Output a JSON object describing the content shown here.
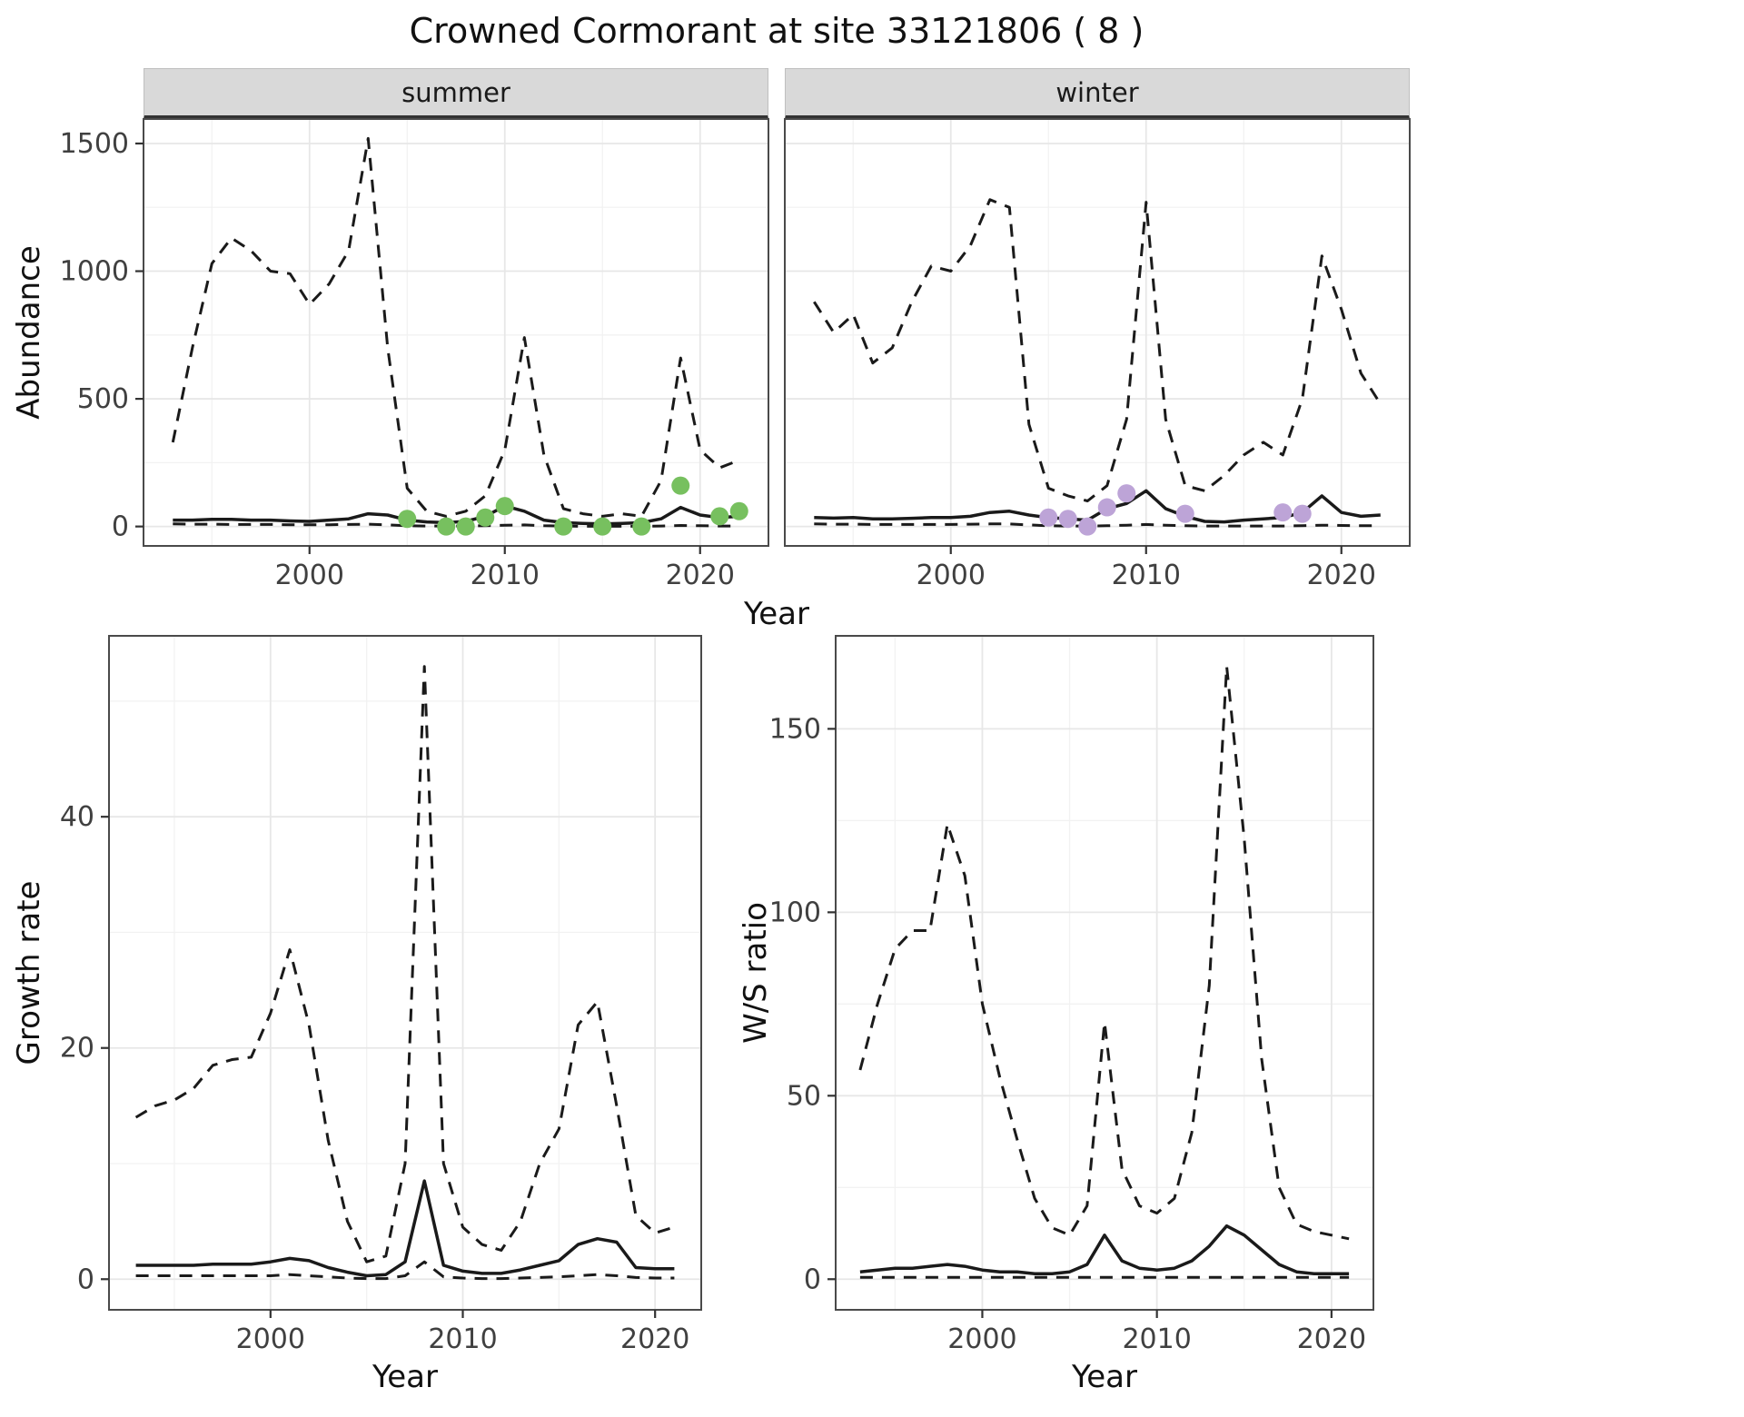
{
  "title": "Crowned Cormorant at site 33121806 ( 8 )",
  "colors": {
    "line": "#1a1a1a",
    "panel_bg": "#ffffff",
    "grid_major": "#e7e7e7",
    "grid_minor": "#f2f2f2",
    "panel_border": "#4a4a4a",
    "tick_mark": "#333333",
    "tick_text": "#404040",
    "strip_bg": "#d9d9d9",
    "summer_points": "#77c05f",
    "winter_points": "#bda4d7"
  },
  "chart_data": [
    {
      "id": "abundance_summer",
      "type": "line",
      "facet": "summer",
      "title": "",
      "xlabel": "Year",
      "ylabel": "Abundance",
      "xlim": [
        1991.5,
        2023.5
      ],
      "ylim": [
        -76,
        1596
      ],
      "xticks": [
        2000,
        2010,
        2020
      ],
      "yticks": [
        0,
        500,
        1000,
        1500
      ],
      "grid": true,
      "legend": "none",
      "x": [
        1993,
        1994,
        1995,
        1996,
        1997,
        1998,
        1999,
        2000,
        2001,
        2002,
        2003,
        2004,
        2005,
        2006,
        2007,
        2008,
        2009,
        2010,
        2011,
        2012,
        2013,
        2014,
        2015,
        2016,
        2017,
        2018,
        2019,
        2020,
        2021,
        2022
      ],
      "series": [
        {
          "name": "upper_95ci",
          "style": "dashed",
          "y": [
            330,
            700,
            1030,
            1130,
            1080,
            1000,
            990,
            870,
            950,
            1080,
            1520,
            700,
            150,
            60,
            40,
            60,
            120,
            300,
            740,
            280,
            70,
            50,
            40,
            50,
            40,
            180,
            660,
            300,
            230,
            260
          ]
        },
        {
          "name": "median",
          "style": "solid",
          "y": [
            25,
            25,
            28,
            28,
            25,
            25,
            22,
            20,
            25,
            30,
            50,
            45,
            25,
            18,
            15,
            20,
            40,
            80,
            60,
            25,
            15,
            12,
            10,
            12,
            15,
            30,
            75,
            45,
            35,
            40
          ]
        },
        {
          "name": "lower_95ci",
          "style": "dashed",
          "y": [
            10,
            9,
            9,
            8,
            8,
            8,
            7,
            7,
            7,
            8,
            9,
            6,
            3,
            2,
            2,
            2,
            3,
            5,
            6,
            3,
            2,
            1,
            1,
            1,
            1,
            2,
            4,
            3,
            2,
            2
          ]
        },
        {
          "name": "observed_counts",
          "style": "points",
          "color": "#77c05f",
          "x": [
            2005,
            2007,
            2008,
            2009,
            2010,
            2013,
            2015,
            2017,
            2019,
            2021,
            2022
          ],
          "y": [
            30,
            0,
            0,
            35,
            80,
            0,
            0,
            0,
            160,
            40,
            60
          ]
        }
      ]
    },
    {
      "id": "abundance_winter",
      "type": "line",
      "facet": "winter",
      "title": "",
      "xlabel": "Year",
      "ylabel": "Abundance",
      "xlim": [
        1991.5,
        2023.5
      ],
      "ylim": [
        -76,
        1596
      ],
      "xticks": [
        2000,
        2010,
        2020
      ],
      "yticks": [
        0,
        500,
        1000,
        1500
      ],
      "grid": true,
      "legend": "none",
      "x": [
        1993,
        1994,
        1995,
        1996,
        1997,
        1998,
        1999,
        2000,
        2001,
        2002,
        2003,
        2004,
        2005,
        2006,
        2007,
        2008,
        2009,
        2010,
        2011,
        2012,
        2013,
        2014,
        2015,
        2016,
        2017,
        2018,
        2019,
        2020,
        2021,
        2022
      ],
      "series": [
        {
          "name": "upper_95ci",
          "style": "dashed",
          "y": [
            880,
            760,
            830,
            640,
            700,
            880,
            1020,
            1000,
            1100,
            1280,
            1250,
            400,
            150,
            120,
            100,
            160,
            420,
            1270,
            420,
            160,
            140,
            200,
            280,
            330,
            280,
            500,
            1060,
            850,
            600,
            480
          ]
        },
        {
          "name": "median",
          "style": "solid",
          "y": [
            35,
            33,
            35,
            30,
            30,
            32,
            35,
            35,
            40,
            55,
            60,
            45,
            35,
            30,
            25,
            70,
            90,
            140,
            70,
            40,
            20,
            18,
            25,
            30,
            35,
            55,
            120,
            55,
            40,
            45
          ]
        },
        {
          "name": "lower_95ci",
          "style": "dashed",
          "y": [
            10,
            9,
            9,
            8,
            8,
            8,
            8,
            8,
            9,
            10,
            10,
            6,
            3,
            2,
            2,
            3,
            5,
            8,
            5,
            3,
            2,
            2,
            2,
            2,
            2,
            3,
            5,
            4,
            3,
            3
          ]
        },
        {
          "name": "observed_counts",
          "style": "points",
          "color": "#bda4d7",
          "x": [
            2005,
            2006,
            2007,
            2008,
            2009,
            2012,
            2017,
            2018
          ],
          "y": [
            35,
            30,
            0,
            75,
            130,
            50,
            55,
            50
          ]
        }
      ]
    },
    {
      "id": "growth_rate",
      "type": "line",
      "facet": "",
      "title": "",
      "xlabel": "Year",
      "ylabel": "Growth rate",
      "xlim": [
        1991.6,
        2022.4
      ],
      "ylim": [
        -2.65,
        55.65
      ],
      "xticks": [
        2000,
        2010,
        2020
      ],
      "yticks": [
        0,
        20,
        40
      ],
      "grid": true,
      "legend": "none",
      "x": [
        1993,
        1994,
        1995,
        1996,
        1997,
        1998,
        1999,
        2000,
        2001,
        2002,
        2003,
        2004,
        2005,
        2006,
        2007,
        2008,
        2009,
        2010,
        2011,
        2012,
        2013,
        2014,
        2015,
        2016,
        2017,
        2018,
        2019,
        2020,
        2021
      ],
      "series": [
        {
          "name": "upper_95ci",
          "style": "dashed",
          "y": [
            14,
            15,
            15.5,
            16.5,
            18.5,
            19,
            19.2,
            23,
            28.5,
            22,
            12,
            5,
            1.5,
            2,
            10,
            53,
            10,
            4.5,
            3,
            2.5,
            5,
            10,
            13,
            22,
            24,
            15,
            5.5,
            4,
            4.5
          ]
        },
        {
          "name": "median",
          "style": "solid",
          "y": [
            1.2,
            1.2,
            1.2,
            1.2,
            1.3,
            1.3,
            1.3,
            1.5,
            1.8,
            1.6,
            1.0,
            0.6,
            0.3,
            0.4,
            1.5,
            8.5,
            1.2,
            0.7,
            0.5,
            0.5,
            0.8,
            1.2,
            1.6,
            3.0,
            3.5,
            3.2,
            1.0,
            0.9,
            0.9
          ]
        },
        {
          "name": "lower_95ci",
          "style": "dashed",
          "y": [
            0.3,
            0.3,
            0.3,
            0.3,
            0.3,
            0.3,
            0.3,
            0.3,
            0.4,
            0.3,
            0.2,
            0.1,
            0.05,
            0.05,
            0.3,
            1.5,
            0.2,
            0.1,
            0.05,
            0.05,
            0.1,
            0.15,
            0.2,
            0.3,
            0.4,
            0.3,
            0.15,
            0.1,
            0.1
          ]
        }
      ]
    },
    {
      "id": "ws_ratio",
      "type": "line",
      "facet": "",
      "title": "",
      "xlabel": "Year",
      "ylabel": "W/S ratio",
      "xlim": [
        1991.6,
        2022.4
      ],
      "ylim": [
        -8.35,
        175.35
      ],
      "xticks": [
        2000,
        2010,
        2020
      ],
      "yticks": [
        0,
        50,
        100,
        150
      ],
      "grid": true,
      "legend": "none",
      "x": [
        1993,
        1994,
        1995,
        1996,
        1997,
        1998,
        1999,
        2000,
        2001,
        2002,
        2003,
        2004,
        2005,
        2006,
        2007,
        2008,
        2009,
        2010,
        2011,
        2012,
        2013,
        2014,
        2015,
        2016,
        2017,
        2018,
        2019,
        2020,
        2021
      ],
      "series": [
        {
          "name": "upper_95ci",
          "style": "dashed",
          "y": [
            57,
            75,
            90,
            95,
            95,
            124,
            110,
            75,
            55,
            38,
            22,
            14,
            12,
            20,
            70,
            30,
            20,
            18,
            22,
            40,
            80,
            167,
            120,
            60,
            25,
            15,
            13,
            12,
            11
          ]
        },
        {
          "name": "median",
          "style": "solid",
          "y": [
            2,
            2.5,
            3,
            3,
            3.5,
            4,
            3.5,
            2.5,
            2,
            2,
            1.5,
            1.5,
            2,
            4,
            12,
            5,
            3,
            2.5,
            3,
            5,
            9,
            14.5,
            12,
            8,
            4,
            2,
            1.5,
            1.5,
            1.5
          ]
        },
        {
          "name": "lower_95ci",
          "style": "dashed",
          "y": [
            0.5,
            0.5,
            0.5,
            0.5,
            0.5,
            0.5,
            0.5,
            0.5,
            0.5,
            0.5,
            0.5,
            0.5,
            0.5,
            0.5,
            0.5,
            0.5,
            0.5,
            0.5,
            0.5,
            0.5,
            0.5,
            0.5,
            0.5,
            0.5,
            0.5,
            0.5,
            0.5,
            0.5,
            0.5
          ]
        }
      ]
    }
  ]
}
